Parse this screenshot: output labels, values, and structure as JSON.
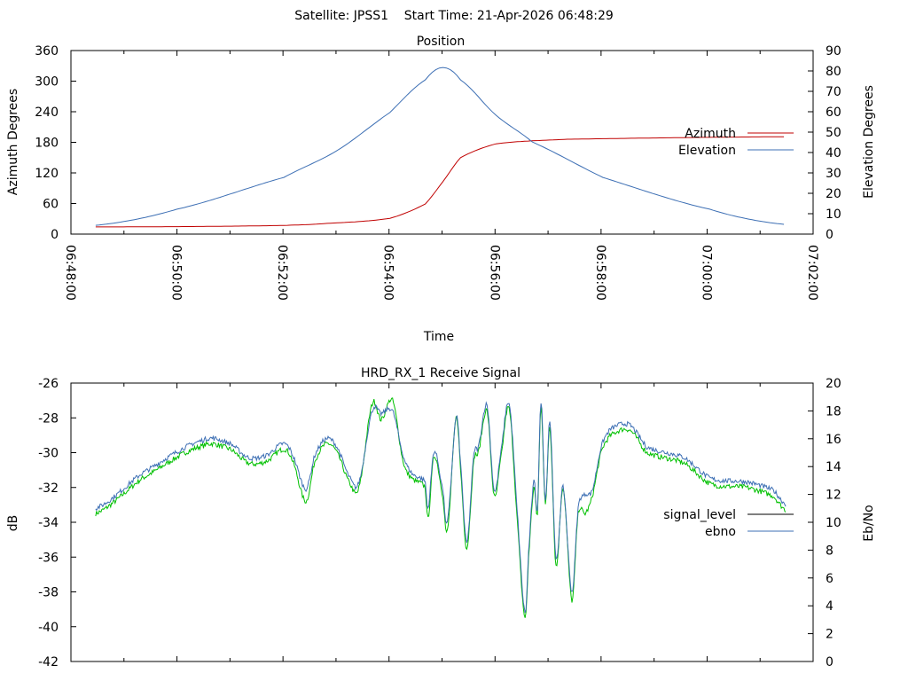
{
  "header": {
    "title": "Satellite: JPSS1    Start Time: 21-Apr-2026 06:48:29"
  },
  "chart_data": [
    {
      "type": "line",
      "title": "Position",
      "xlabel": "Time",
      "ylabel": "Azimuth Degrees",
      "y2label": "Elevation Degrees",
      "x_unit": "seconds after 06:48:00",
      "xlim": [
        0,
        840
      ],
      "ylim": [
        0,
        360
      ],
      "y2lim": [
        0,
        90
      ],
      "xticks": [
        "06:48:00",
        "06:50:00",
        "06:52:00",
        "06:54:00",
        "06:56:00",
        "06:58:00",
        "07:00:00",
        "07:02:00"
      ],
      "yticks": [
        "0",
        "60",
        "120",
        "180",
        "240",
        "300",
        "360"
      ],
      "y2ticks": [
        "0",
        "10",
        "20",
        "30",
        "40",
        "50",
        "60",
        "70",
        "80",
        "90"
      ],
      "legend_position": "right",
      "series": [
        {
          "name": "Azimuth",
          "axis": "y",
          "color": "#c00000",
          "x": [
            28,
            150,
            241,
            290,
            361,
            401,
            421,
            441,
            481,
            562,
            807
          ],
          "y": [
            14,
            15,
            17,
            21,
            31,
            59,
            103,
            150,
            177,
            186,
            191
          ]
        },
        {
          "name": "Elevation",
          "axis": "y2",
          "color": "#3d6fb4",
          "x": [
            28,
            120,
            241,
            301,
            361,
            401,
            421,
            441,
            481,
            522,
            602,
            723,
            807
          ],
          "y": [
            4.3,
            12.2,
            27.8,
            40.9,
            59.6,
            75.6,
            81.7,
            75.6,
            58.3,
            45.2,
            27.8,
            12.2,
            4.8
          ]
        }
      ]
    },
    {
      "type": "line",
      "title": "HRD_RX_1 Receive Signal",
      "xlabel": "",
      "ylabel": "dB",
      "y2label": "Eb/No",
      "x_unit": "seconds after 06:48:00",
      "xlim": [
        0,
        840
      ],
      "ylim": [
        -42,
        -26
      ],
      "y2lim": [
        0,
        20
      ],
      "yticks": [
        "-42",
        "-40",
        "-38",
        "-36",
        "-34",
        "-32",
        "-30",
        "-28",
        "-26"
      ],
      "y2ticks": [
        "0",
        "2",
        "4",
        "6",
        "8",
        "10",
        "12",
        "14",
        "16",
        "18",
        "20"
      ],
      "legend_position": "right",
      "series": [
        {
          "name": "signal_level",
          "axis": "y",
          "color": "#00c000",
          "legend_color": "#000000",
          "x": [
            28,
            80,
            150,
            180,
            201,
            221,
            241,
            251,
            266,
            276,
            289,
            301,
            316,
            326,
            341,
            351,
            364,
            376,
            386,
            401,
            404,
            411,
            421,
            426,
            436,
            441,
            448,
            456,
            461,
            471,
            479,
            486,
            496,
            506,
            514,
            518,
            524,
            528,
            532,
            537,
            542,
            549,
            557,
            567,
            574,
            582,
            590,
            600,
            611,
            632,
            652,
            694,
            724,
            765,
            795,
            809
          ],
          "y": [
            -33.5,
            -31.5,
            -29.6,
            -29.8,
            -30.6,
            -30.5,
            -29.8,
            -30.5,
            -32.8,
            -30.5,
            -29.5,
            -30.0,
            -31.8,
            -32,
            -27.2,
            -28.1,
            -27.0,
            -30.5,
            -31.5,
            -32,
            -33.8,
            -30.2,
            -32.5,
            -34.5,
            -28,
            -31,
            -35.5,
            -30.5,
            -30,
            -27.6,
            -32.5,
            -30.5,
            -27.5,
            -34.5,
            -39.5,
            -36,
            -32,
            -33.5,
            -27.3,
            -33,
            -28.5,
            -36.5,
            -32,
            -38.5,
            -33.5,
            -33.5,
            -32.5,
            -30,
            -29,
            -28.7,
            -30,
            -30.6,
            -31.8,
            -32,
            -32.5,
            -33.3
          ]
        },
        {
          "name": "ebno",
          "axis": "y2",
          "color": "#3d6fb4",
          "x": [
            28,
            80,
            150,
            180,
            201,
            221,
            241,
            251,
            266,
            276,
            289,
            301,
            316,
            326,
            341,
            351,
            364,
            376,
            386,
            401,
            404,
            411,
            421,
            426,
            436,
            441,
            448,
            456,
            461,
            471,
            479,
            486,
            496,
            506,
            514,
            518,
            524,
            528,
            532,
            537,
            542,
            549,
            557,
            567,
            574,
            582,
            590,
            600,
            611,
            632,
            652,
            694,
            724,
            765,
            795,
            809
          ],
          "y": [
            11.0,
            13.5,
            15.9,
            15.65,
            14.65,
            14.8,
            15.65,
            14.8,
            12.4,
            14.8,
            16.0,
            15.4,
            13.15,
            12.9,
            18.0,
            17.8,
            18.0,
            14.8,
            13.5,
            12.9,
            11.0,
            15.1,
            12.3,
            10.0,
            17.5,
            14.2,
            8.5,
            14.8,
            15.4,
            18.4,
            12.3,
            14.8,
            18.5,
            10.0,
            3.5,
            7.9,
            12.9,
            11.0,
            18.7,
            11.6,
            17.3,
            7.3,
            12.5,
            5.0,
            11.0,
            12.0,
            12.3,
            15.4,
            16.7,
            17.0,
            15.4,
            14.65,
            13.15,
            12.9,
            12.3,
            11.3
          ]
        }
      ]
    }
  ]
}
